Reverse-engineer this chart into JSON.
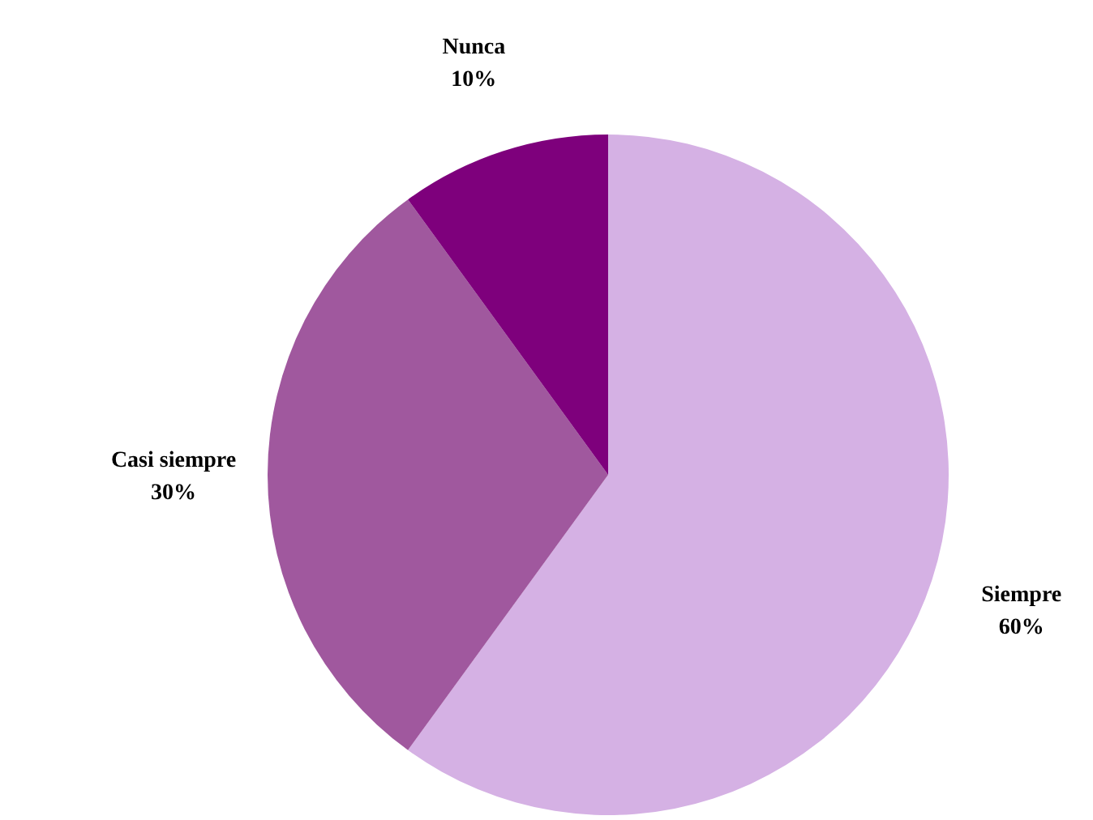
{
  "chart_data": {
    "type": "pie",
    "categories": [
      "Siempre",
      "Casi siempre",
      "Nunca"
    ],
    "values": [
      60,
      30,
      10
    ],
    "colors": [
      "#d5b1e4",
      "#a0589e",
      "#7e007c"
    ],
    "value_labels": [
      "60%",
      "30%",
      "10%"
    ]
  }
}
